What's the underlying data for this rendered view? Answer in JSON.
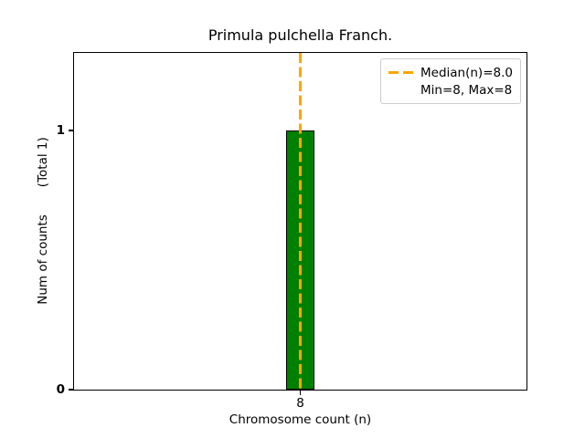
{
  "chart_data": {
    "type": "bar",
    "title": "Primula pulchella Franch.",
    "xlabel": "Chromosome count (n)",
    "ylabel": "Num of counts       (Total 1)",
    "categories": [
      8
    ],
    "values": [
      1
    ],
    "bar": {
      "color": "#008000",
      "edge_color": "#000000",
      "width_data_units": 0.8
    },
    "xlim": [
      1.79,
      14.21
    ],
    "ylim": [
      0,
      1.3
    ],
    "x_ticks": [
      {
        "label": "8",
        "value": 8
      }
    ],
    "y_ticks": [
      {
        "label": "0",
        "value": 0
      },
      {
        "label": "1",
        "value": 1
      }
    ],
    "grid": false,
    "median_line": {
      "value": 8.0,
      "color": "#FFA500",
      "style": "dashed"
    },
    "legend": {
      "position": "upper-right",
      "border_color": "#cccccc",
      "entries": [
        {
          "label": "Median(n)=8.0",
          "handle": "dashed-line",
          "handle_color": "#FFA500"
        },
        {
          "label": "Min=8, Max=8",
          "handle": "none"
        }
      ]
    }
  }
}
